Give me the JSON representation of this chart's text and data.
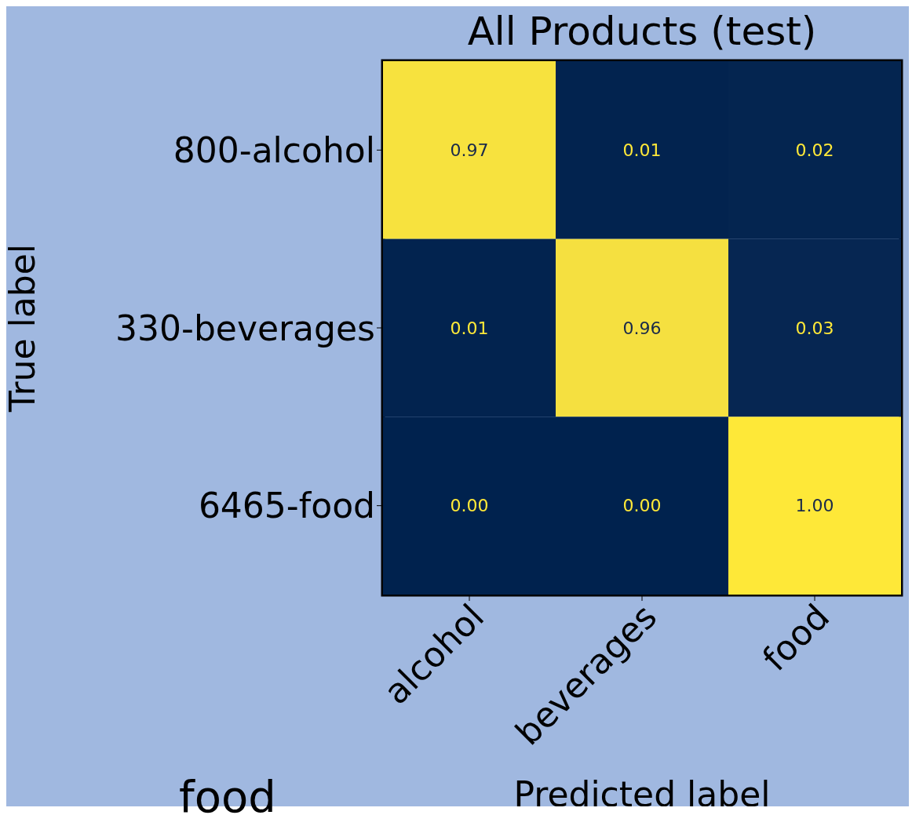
{
  "chart_data": {
    "type": "heatmap",
    "title": "All Products (test)",
    "xlabel": "Predicted label",
    "ylabel": "True label",
    "categories": [
      "alcohol",
      "beverages",
      "food"
    ],
    "y_categories": [
      "800-alcohol",
      "330-beverages",
      "6465-food"
    ],
    "cells": [
      [
        0.97,
        0.01,
        0.02
      ],
      [
        0.01,
        0.96,
        0.03
      ],
      [
        0.0,
        0.0,
        1.0
      ]
    ],
    "cell_labels": [
      [
        "0.97",
        "0.01",
        "0.02"
      ],
      [
        "0.01",
        "0.96",
        "0.03"
      ],
      [
        "0.00",
        "0.00",
        "1.00"
      ]
    ],
    "annotations": [
      "food"
    ]
  }
}
